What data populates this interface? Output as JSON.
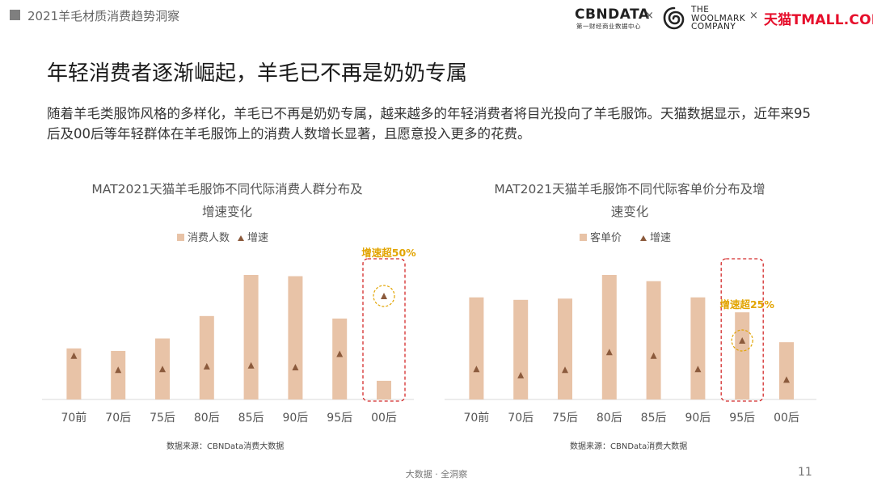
{
  "header": {
    "title": "2021羊毛材质消费趋势洞察",
    "logos": {
      "cbn_main": "CBNDATA",
      "cbn_sub": "第一财经商业数据中心",
      "separator": "×",
      "woolmark_lines": [
        "THE",
        "WOOLMARK",
        "COMPANY"
      ],
      "tmall_cn": "天猫",
      "tmall_en": "TMALL.COM"
    }
  },
  "colors": {
    "bar": "#e8c3a7",
    "marker": "#8b5a3c",
    "highlight": "#e2a400",
    "box": "#d42a2a",
    "brand_red": "#e60e2b"
  },
  "main_title": "年轻消费者逐渐崛起，羊毛已不再是奶奶专属",
  "intro": "随着羊毛类服饰风格的多样化，羊毛已不再是奶奶专属，越来越多的年轻消费者将目光投向了羊毛服饰。天猫数据显示，近年来95后及00后等年轻群体在羊毛服饰上的消费人数增长显著，且愿意投入更多的花费。",
  "chart_data": [
    {
      "type": "bar",
      "title_lines": [
        "MAT2021天猫羊毛服饰不同代际消费人群分布及",
        "增速变化"
      ],
      "legend": {
        "bar_label": "消费人数",
        "marker_label": "增速",
        "position": "top-center"
      },
      "categories": [
        "70前",
        "70后",
        "75后",
        "80后",
        "85后",
        "90后",
        "95后",
        "00后"
      ],
      "series": [
        {
          "name": "消费人数",
          "values": [
            0.41,
            0.39,
            0.49,
            0.67,
            1.0,
            0.99,
            0.65,
            0.15
          ]
        },
        {
          "name": "增速",
          "values": [
            0.33,
            0.17,
            0.18,
            0.21,
            0.22,
            0.2,
            0.35,
            1.0
          ]
        }
      ],
      "highlight": {
        "category": "00后",
        "label": "增速超50%"
      },
      "source": "数据来源：CBNData消费大数据"
    },
    {
      "type": "bar",
      "title_lines": [
        "MAT2021天猫羊毛服饰不同代际客单价分布及增",
        "速变化"
      ],
      "legend": {
        "bar_label": "客单价",
        "marker_label": "增速",
        "position": "top-center"
      },
      "categories": [
        "70前",
        "70后",
        "75后",
        "80后",
        "85后",
        "90后",
        "95后",
        "00后"
      ],
      "series": [
        {
          "name": "客单价",
          "values": [
            0.82,
            0.8,
            0.81,
            1.0,
            0.95,
            0.82,
            0.7,
            0.46
          ]
        },
        {
          "name": "增速",
          "values": [
            0.18,
            0.11,
            0.17,
            0.37,
            0.33,
            0.18,
            0.5,
            0.06
          ]
        }
      ],
      "highlight": {
        "category": "95后",
        "label": "增速超25%"
      },
      "source": "数据来源：CBNData消费大数据"
    }
  ],
  "footer": {
    "text": "大数据 · 全洞察",
    "page": "11"
  }
}
